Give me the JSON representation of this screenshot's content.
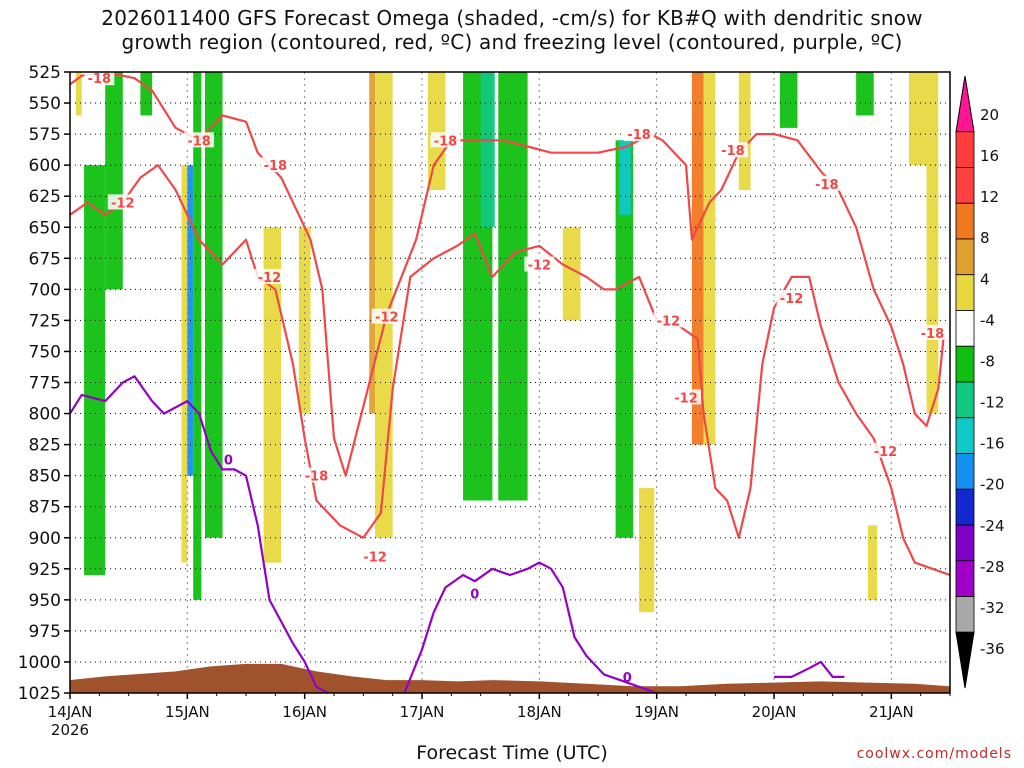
{
  "title": {
    "line1": "2026011400 GFS Forecast Omega (shaded, -cm/s) for KB#Q with dendritic snow",
    "line2": "growth region (contoured, red, ºC) and freezing level (contoured, purple, ºC)"
  },
  "xlabel": "Forecast Time (UTC)",
  "watermark": "coolwx.com/models",
  "colors": {
    "red_contour": "#f04848",
    "purple_contour": "#9400c8",
    "terrain": "#a0522d"
  },
  "chart_data": {
    "type": "heatmap",
    "title": "2026011400 GFS Forecast Omega (shaded, -cm/s) for KB#Q with dendritic snow growth region (contoured, red, ºC) and freezing level (contoured, purple, ºC)",
    "xlabel": "Forecast Time (UTC)",
    "ylabel": "",
    "y_axis": {
      "levels_hpa": [
        525,
        550,
        575,
        600,
        625,
        650,
        675,
        700,
        725,
        750,
        775,
        800,
        825,
        850,
        875,
        900,
        925,
        950,
        975,
        1000,
        1025
      ],
      "direction": "pressure increasing downward",
      "ylim": [
        1025,
        525
      ]
    },
    "x_axis": {
      "xlim_days": [
        0,
        7.5
      ],
      "ticks": [
        {
          "day": 0,
          "label": "14JAN",
          "sublabel": "2026"
        },
        {
          "day": 1,
          "label": "15JAN"
        },
        {
          "day": 2,
          "label": "16JAN"
        },
        {
          "day": 3,
          "label": "17JAN"
        },
        {
          "day": 4,
          "label": "18JAN"
        },
        {
          "day": 5,
          "label": "19JAN"
        },
        {
          "day": 6,
          "label": "20JAN"
        },
        {
          "day": 7,
          "label": "21JAN"
        }
      ]
    },
    "grid": true,
    "colorbar": {
      "labels": [
        20,
        16,
        12,
        8,
        4,
        -4,
        -8,
        -12,
        -16,
        -20,
        -24,
        -28,
        -32,
        -36
      ],
      "colors": [
        "#ff1493",
        "#ff3c3c",
        "#ff4040",
        "#f07820",
        "#e0a030",
        "#e8d840",
        "#ffffff",
        "#10c010",
        "#10c880",
        "#10c8c8",
        "#1490f0",
        "#1428d0",
        "#8000c8",
        "#a000c8",
        "#a8a8a8",
        "#000000"
      ],
      "placement": "right"
    },
    "shaded_bands": [
      {
        "day_start": 0.05,
        "day_end": 0.1,
        "p_top": 525,
        "p_bottom": 560,
        "color": "#e8d840"
      },
      {
        "day_start": 0.12,
        "day_end": 0.3,
        "p_top": 600,
        "p_bottom": 930,
        "color": "#10c010"
      },
      {
        "day_start": 0.3,
        "day_end": 0.45,
        "p_top": 525,
        "p_bottom": 700,
        "color": "#10c010"
      },
      {
        "day_start": 0.6,
        "day_end": 0.7,
        "p_top": 525,
        "p_bottom": 560,
        "color": "#10c010"
      },
      {
        "day_start": 0.95,
        "day_end": 1.0,
        "p_top": 600,
        "p_bottom": 920,
        "color": "#e8d840"
      },
      {
        "day_start": 1.0,
        "day_end": 1.05,
        "p_top": 600,
        "p_bottom": 850,
        "color": "#1490f0"
      },
      {
        "day_start": 1.05,
        "day_end": 1.12,
        "p_top": 525,
        "p_bottom": 950,
        "color": "#10c010"
      },
      {
        "day_start": 1.15,
        "day_end": 1.3,
        "p_top": 525,
        "p_bottom": 900,
        "color": "#10c010"
      },
      {
        "day_start": 1.65,
        "day_end": 1.8,
        "p_top": 650,
        "p_bottom": 920,
        "color": "#e8d840"
      },
      {
        "day_start": 1.95,
        "day_end": 2.05,
        "p_top": 650,
        "p_bottom": 800,
        "color": "#e8d840"
      },
      {
        "day_start": 2.55,
        "day_end": 2.6,
        "p_top": 525,
        "p_bottom": 800,
        "color": "#e0a030"
      },
      {
        "day_start": 2.6,
        "day_end": 2.75,
        "p_top": 525,
        "p_bottom": 900,
        "color": "#e8d840"
      },
      {
        "day_start": 3.05,
        "day_end": 3.2,
        "p_top": 525,
        "p_bottom": 620,
        "color": "#e8d840"
      },
      {
        "day_start": 3.35,
        "day_end": 3.6,
        "p_top": 525,
        "p_bottom": 870,
        "color": "#10c010"
      },
      {
        "day_start": 3.5,
        "day_end": 3.62,
        "p_top": 525,
        "p_bottom": 650,
        "color": "#10c880"
      },
      {
        "day_start": 3.65,
        "day_end": 3.9,
        "p_top": 525,
        "p_bottom": 870,
        "color": "#10c010"
      },
      {
        "day_start": 4.2,
        "day_end": 4.35,
        "p_top": 650,
        "p_bottom": 725,
        "color": "#e8d840"
      },
      {
        "day_start": 4.65,
        "day_end": 4.8,
        "p_top": 580,
        "p_bottom": 900,
        "color": "#10c010"
      },
      {
        "day_start": 4.68,
        "day_end": 4.78,
        "p_top": 580,
        "p_bottom": 640,
        "color": "#10c8c8"
      },
      {
        "day_start": 4.85,
        "day_end": 4.98,
        "p_top": 860,
        "p_bottom": 960,
        "color": "#e8d840"
      },
      {
        "day_start": 5.3,
        "day_end": 5.4,
        "p_top": 525,
        "p_bottom": 825,
        "color": "#f07820"
      },
      {
        "day_start": 5.4,
        "day_end": 5.5,
        "p_top": 525,
        "p_bottom": 825,
        "color": "#e8d840"
      },
      {
        "day_start": 5.7,
        "day_end": 5.8,
        "p_top": 525,
        "p_bottom": 620,
        "color": "#e8d840"
      },
      {
        "day_start": 6.05,
        "day_end": 6.2,
        "p_top": 525,
        "p_bottom": 570,
        "color": "#10c010"
      },
      {
        "day_start": 6.7,
        "day_end": 6.85,
        "p_top": 525,
        "p_bottom": 560,
        "color": "#10c010"
      },
      {
        "day_start": 6.8,
        "day_end": 6.88,
        "p_top": 890,
        "p_bottom": 950,
        "color": "#e8d840"
      },
      {
        "day_start": 7.15,
        "day_end": 7.3,
        "p_top": 525,
        "p_bottom": 600,
        "color": "#e8d840"
      },
      {
        "day_start": 7.3,
        "day_end": 7.4,
        "p_top": 525,
        "p_bottom": 800,
        "color": "#e8d840"
      }
    ],
    "dgz_contour_labels": [
      {
        "text": "-18",
        "day": 0.25,
        "p": 530
      },
      {
        "text": "-18",
        "day": 1.1,
        "p": 580
      },
      {
        "text": "-18",
        "day": 1.75,
        "p": 600
      },
      {
        "text": "-12",
        "day": 0.45,
        "p": 630
      },
      {
        "text": "-12",
        "day": 1.7,
        "p": 690
      },
      {
        "text": "-12",
        "day": 2.7,
        "p": 722
      },
      {
        "text": "-18",
        "day": 2.1,
        "p": 850
      },
      {
        "text": "-12",
        "day": 2.6,
        "p": 915
      },
      {
        "text": "-18",
        "day": 3.2,
        "p": 580
      },
      {
        "text": "-12",
        "day": 4.0,
        "p": 680
      },
      {
        "text": "-18",
        "day": 4.85,
        "p": 575
      },
      {
        "text": "-12",
        "day": 5.1,
        "p": 725
      },
      {
        "text": "-18",
        "day": 5.65,
        "p": 588
      },
      {
        "text": "-18",
        "day": 6.45,
        "p": 615
      },
      {
        "text": "-12",
        "day": 6.15,
        "p": 707
      },
      {
        "text": "-12",
        "day": 5.25,
        "p": 787
      },
      {
        "text": "-12",
        "day": 6.95,
        "p": 830
      },
      {
        "text": "-18",
        "day": 7.35,
        "p": 735
      }
    ],
    "dgz_minus18_series": [
      [
        0.0,
        535
      ],
      [
        0.1,
        528
      ],
      [
        0.3,
        525
      ],
      [
        0.55,
        530
      ],
      [
        0.7,
        540
      ],
      [
        0.9,
        570
      ],
      [
        1.1,
        580
      ],
      [
        1.3,
        560
      ],
      [
        1.5,
        565
      ],
      [
        1.6,
        590
      ],
      [
        1.8,
        610
      ],
      [
        1.95,
        640
      ],
      [
        2.05,
        660
      ],
      [
        2.15,
        700
      ],
      [
        2.2,
        760
      ],
      [
        2.25,
        820
      ],
      [
        2.35,
        850
      ],
      [
        2.7,
        720
      ],
      [
        2.95,
        660
      ],
      [
        3.1,
        600
      ],
      [
        3.25,
        580
      ],
      [
        3.45,
        580
      ],
      [
        3.7,
        580
      ],
      [
        3.9,
        585
      ],
      [
        4.1,
        590
      ],
      [
        4.3,
        590
      ],
      [
        4.5,
        590
      ],
      [
        4.75,
        585
      ],
      [
        4.95,
        575
      ],
      [
        5.05,
        580
      ],
      [
        5.25,
        600
      ],
      [
        5.3,
        660
      ],
      [
        5.35,
        650
      ],
      [
        5.45,
        630
      ],
      [
        5.55,
        620
      ],
      [
        5.6,
        610
      ],
      [
        5.7,
        590
      ],
      [
        5.85,
        575
      ],
      [
        6.0,
        575
      ],
      [
        6.2,
        580
      ],
      [
        6.4,
        605
      ],
      [
        6.55,
        620
      ],
      [
        6.7,
        650
      ],
      [
        6.85,
        700
      ],
      [
        7.0,
        730
      ],
      [
        7.1,
        760
      ],
      [
        7.2,
        800
      ],
      [
        7.3,
        810
      ],
      [
        7.4,
        780
      ],
      [
        7.45,
        735
      ]
    ],
    "dgz_minus12_series": [
      [
        0.0,
        640
      ],
      [
        0.15,
        630
      ],
      [
        0.3,
        640
      ],
      [
        0.45,
        630
      ],
      [
        0.6,
        610
      ],
      [
        0.75,
        600
      ],
      [
        0.9,
        620
      ],
      [
        1.0,
        640
      ],
      [
        1.1,
        660
      ],
      [
        1.3,
        680
      ],
      [
        1.5,
        660
      ],
      [
        1.6,
        690
      ],
      [
        1.75,
        700
      ],
      [
        1.9,
        760
      ],
      [
        2.0,
        820
      ],
      [
        2.1,
        870
      ],
      [
        2.3,
        890
      ],
      [
        2.5,
        900
      ],
      [
        2.65,
        880
      ],
      [
        2.75,
        780
      ],
      [
        2.9,
        690
      ],
      [
        3.1,
        675
      ],
      [
        3.3,
        665
      ],
      [
        3.45,
        655
      ],
      [
        3.6,
        690
      ],
      [
        3.8,
        670
      ],
      [
        4.0,
        665
      ],
      [
        4.2,
        680
      ],
      [
        4.4,
        690
      ],
      [
        4.55,
        700
      ],
      [
        4.65,
        700
      ],
      [
        4.85,
        690
      ],
      [
        5.0,
        725
      ],
      [
        5.2,
        730
      ],
      [
        5.35,
        740
      ],
      [
        5.4,
        800
      ],
      [
        5.5,
        860
      ],
      [
        5.6,
        870
      ],
      [
        5.7,
        900
      ],
      [
        5.8,
        860
      ],
      [
        5.9,
        760
      ],
      [
        6.0,
        715
      ],
      [
        6.15,
        690
      ],
      [
        6.3,
        690
      ],
      [
        6.4,
        730
      ],
      [
        6.55,
        775
      ],
      [
        6.7,
        800
      ],
      [
        6.85,
        820
      ],
      [
        7.0,
        860
      ],
      [
        7.1,
        900
      ],
      [
        7.2,
        920
      ],
      [
        7.35,
        925
      ],
      [
        7.5,
        930
      ]
    ],
    "freezing_level_series": [
      [
        0.0,
        800
      ],
      [
        0.1,
        785
      ],
      [
        0.3,
        790
      ],
      [
        0.45,
        775
      ],
      [
        0.55,
        770
      ],
      [
        0.7,
        790
      ],
      [
        0.8,
        800
      ],
      [
        1.0,
        790
      ],
      [
        1.1,
        800
      ],
      [
        1.2,
        830
      ],
      [
        1.3,
        845
      ],
      [
        1.4,
        845
      ],
      [
        1.5,
        850
      ],
      [
        1.6,
        890
      ],
      [
        1.7,
        950
      ],
      [
        1.9,
        985
      ],
      [
        2.0,
        1000
      ],
      [
        2.1,
        1020
      ],
      [
        2.2,
        1025
      ]
    ],
    "freezing_level_series_2": [
      [
        2.85,
        1025
      ],
      [
        3.0,
        990
      ],
      [
        3.1,
        960
      ],
      [
        3.2,
        940
      ],
      [
        3.35,
        930
      ],
      [
        3.45,
        935
      ],
      [
        3.6,
        925
      ],
      [
        3.75,
        930
      ],
      [
        3.9,
        925
      ],
      [
        4.0,
        920
      ],
      [
        4.1,
        925
      ],
      [
        4.2,
        940
      ],
      [
        4.3,
        980
      ],
      [
        4.4,
        995
      ],
      [
        4.55,
        1010
      ],
      [
        4.7,
        1015
      ],
      [
        4.85,
        1020
      ],
      [
        5.0,
        1025
      ]
    ],
    "freezing_level_series_3": [
      [
        6.0,
        1012
      ],
      [
        6.15,
        1012
      ],
      [
        6.3,
        1005
      ],
      [
        6.4,
        1000
      ],
      [
        6.5,
        1012
      ],
      [
        6.6,
        1012
      ]
    ],
    "freezing_labels": [
      {
        "text": "0",
        "day": 1.35,
        "p": 837
      },
      {
        "text": "0",
        "day": 3.45,
        "p": 945
      },
      {
        "text": "0",
        "day": 4.75,
        "p": 1012
      }
    ],
    "terrain_series": [
      [
        0.0,
        1015
      ],
      [
        0.3,
        1012
      ],
      [
        0.6,
        1010
      ],
      [
        0.9,
        1008
      ],
      [
        1.2,
        1004
      ],
      [
        1.5,
        1002
      ],
      [
        1.8,
        1002
      ],
      [
        2.1,
        1008
      ],
      [
        2.4,
        1012
      ],
      [
        2.7,
        1015
      ],
      [
        3.0,
        1015
      ],
      [
        3.3,
        1016
      ],
      [
        3.6,
        1015
      ],
      [
        4.0,
        1016
      ],
      [
        4.4,
        1018
      ],
      [
        4.8,
        1020
      ],
      [
        5.2,
        1020
      ],
      [
        5.6,
        1018
      ],
      [
        6.0,
        1017
      ],
      [
        6.4,
        1016
      ],
      [
        6.8,
        1017
      ],
      [
        7.2,
        1018
      ],
      [
        7.5,
        1020
      ]
    ]
  }
}
